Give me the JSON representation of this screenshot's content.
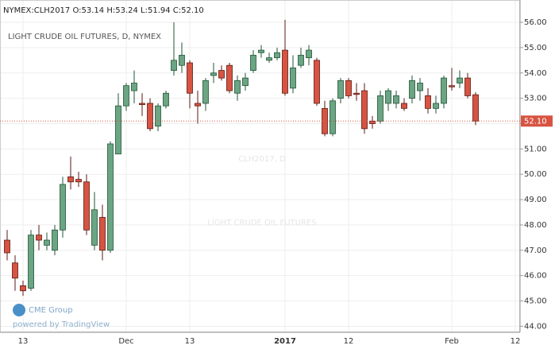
{
  "chart_data": {
    "type": "candlestick",
    "header": "NYMEX:CLH2017 O:53.14 H:53.24 L:51.94 C:52.10",
    "title": "LIGHT CRUDE OIL FUTURES, D, NYMEX",
    "watermark": "CLH2017, D",
    "watermark_subtitle": "LIGHT CRUDE OIL FUTURES",
    "logo": "CME Group",
    "powered_by": "powered by TradingView",
    "last_price_label": "52.10",
    "up_color": "#6ba583",
    "up_border": "#225437",
    "down_color": "#d75442",
    "down_border": "#5b1a13",
    "categories": [
      null,
      null,
      "13",
      null,
      null,
      null,
      null,
      null,
      null,
      null,
      null,
      null,
      null,
      null,
      null,
      "Dec",
      null,
      null,
      null,
      null,
      null,
      null,
      null,
      "13",
      null,
      null,
      null,
      null,
      null,
      null,
      null,
      null,
      null,
      null,
      null,
      "2017",
      null,
      null,
      null,
      null,
      null,
      null,
      null,
      "12",
      null,
      null,
      null,
      null,
      null,
      null,
      null,
      null,
      null,
      null,
      null,
      null,
      "Feb",
      null,
      null,
      null,
      null,
      null,
      null,
      null,
      "12"
    ],
    "open": [
      47.4,
      46.5,
      45.6,
      45.5,
      47.6,
      47.2,
      47.0,
      47.8,
      49.9,
      49.8,
      49.7,
      47.2,
      48.3,
      47.0,
      50.8,
      52.7,
      53.3,
      52.8,
      52.8,
      51.9,
      52.7,
      54.1,
      54.3,
      54.4,
      52.8,
      52.8,
      53.9,
      54.1,
      54.3,
      53.2,
      53.5,
      54.1,
      54.8,
      54.5,
      54.6,
      54.9,
      53.4,
      54.3,
      54.6,
      54.5,
      52.6,
      51.6,
      53.0,
      53.7,
      53.2,
      53.3,
      52.1,
      52.1,
      52.8,
      52.8,
      52.8,
      53.0,
      53.3,
      53.1,
      52.6,
      52.8,
      53.5,
      53.6,
      53.8,
      53.14,
      null,
      null,
      null,
      null,
      null
    ],
    "high": [
      47.8,
      46.8,
      45.8,
      47.8,
      48.0,
      47.7,
      48.0,
      49.9,
      50.7,
      50.1,
      50.0,
      49.3,
      48.8,
      51.3,
      53.2,
      53.6,
      54.1,
      53.2,
      53.0,
      52.8,
      53.3,
      56.0,
      55.2,
      54.5,
      53.3,
      53.8,
      54.4,
      54.3,
      54.4,
      53.9,
      54.0,
      54.9,
      55.1,
      54.8,
      55.0,
      56.1,
      54.7,
      55.0,
      55.1,
      54.6,
      52.9,
      53.0,
      53.8,
      53.8,
      53.6,
      53.6,
      52.3,
      53.3,
      53.4,
      53.3,
      53.0,
      53.9,
      53.8,
      53.4,
      53.1,
      53.9,
      54.2,
      54.1,
      54.0,
      53.24,
      null,
      null,
      null,
      null,
      null
    ],
    "low": [
      46.6,
      45.4,
      45.2,
      45.4,
      47.0,
      47.0,
      46.8,
      47.5,
      49.4,
      49.5,
      47.6,
      47.0,
      46.6,
      46.9,
      50.8,
      52.5,
      52.8,
      52.3,
      51.7,
      51.7,
      52.6,
      53.9,
      54.0,
      52.6,
      52.0,
      52.5,
      53.6,
      53.7,
      53.2,
      52.9,
      53.3,
      54.0,
      54.6,
      54.4,
      54.5,
      53.1,
      53.2,
      54.2,
      54.3,
      52.7,
      51.5,
      51.5,
      52.8,
      53.0,
      52.9,
      51.6,
      51.8,
      52.0,
      52.5,
      52.6,
      52.5,
      52.8,
      52.9,
      52.4,
      52.4,
      52.6,
      53.3,
      53.4,
      53.0,
      51.94,
      null,
      null,
      null,
      null,
      null
    ],
    "close": [
      46.9,
      45.9,
      45.4,
      47.6,
      47.4,
      47.4,
      47.8,
      49.6,
      49.7,
      49.7,
      47.8,
      48.6,
      47.0,
      51.2,
      52.7,
      53.5,
      53.6,
      52.75,
      51.8,
      52.7,
      53.2,
      54.5,
      54.7,
      53.2,
      52.7,
      53.7,
      54.0,
      53.8,
      53.3,
      53.7,
      53.8,
      54.7,
      54.9,
      54.6,
      54.8,
      53.2,
      54.2,
      54.7,
      54.9,
      52.8,
      51.6,
      52.9,
      53.7,
      53.1,
      53.15,
      51.8,
      52.0,
      53.1,
      53.3,
      53.1,
      52.6,
      53.7,
      53.6,
      52.6,
      52.8,
      53.8,
      53.45,
      53.8,
      53.1,
      52.1,
      null,
      null,
      null,
      null,
      null
    ],
    "ylim": [
      43.76,
      56.88
    ],
    "yticks": [
      {
        "value": 44,
        "label": "44.00"
      },
      {
        "value": 45,
        "label": "45.00"
      },
      {
        "value": 46,
        "label": "46.00"
      },
      {
        "value": 47,
        "label": "47.00"
      },
      {
        "value": 48,
        "label": "48.00"
      },
      {
        "value": 49,
        "label": "49.00"
      },
      {
        "value": 50,
        "label": "50.00"
      },
      {
        "value": 51,
        "label": "51.00"
      },
      {
        "value": 52,
        "label": "52.00"
      },
      {
        "value": 53,
        "label": "53.00"
      },
      {
        "value": 54,
        "label": "54.00"
      },
      {
        "value": 55,
        "label": "55.00"
      },
      {
        "value": 56,
        "label": "56.00"
      }
    ],
    "grid": true
  }
}
